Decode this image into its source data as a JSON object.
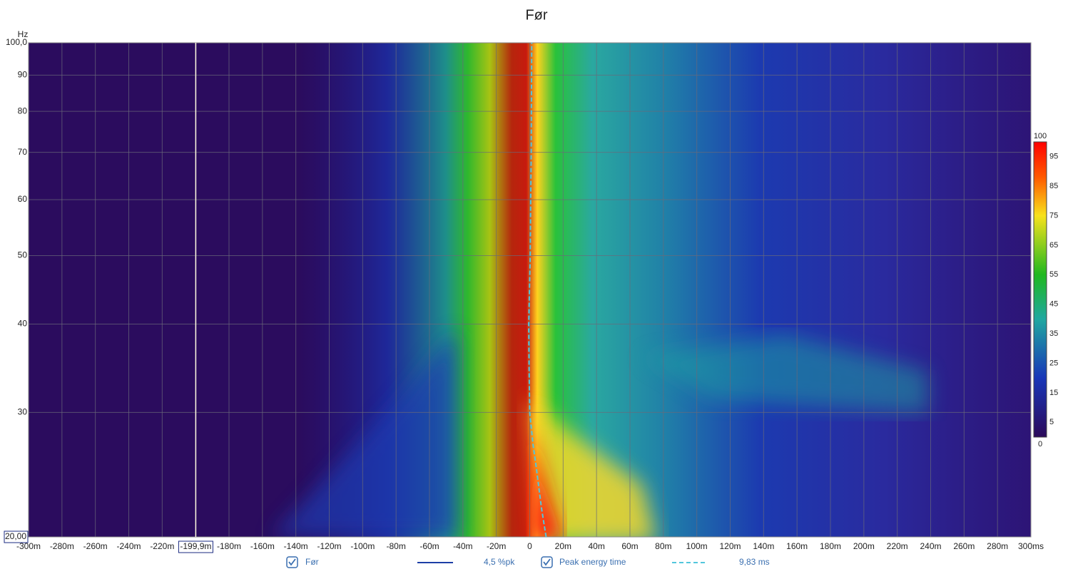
{
  "chart_data": {
    "type": "spectrogram",
    "title": "Før",
    "y_unit": "Hz",
    "xlim": [
      -300,
      300
    ],
    "ylim": [
      20,
      100
    ],
    "yscale": "log",
    "grid": true,
    "xticks": [
      {
        "value": -300,
        "label": "-300m"
      },
      {
        "value": -280,
        "label": "-280m"
      },
      {
        "value": -260,
        "label": "-260m"
      },
      {
        "value": -240,
        "label": "-240m"
      },
      {
        "value": -220,
        "label": "-220m"
      },
      {
        "value": -200,
        "label": "-200m"
      },
      {
        "value": -180,
        "label": "-180m"
      },
      {
        "value": -160,
        "label": "-160m"
      },
      {
        "value": -140,
        "label": "-140m"
      },
      {
        "value": -120,
        "label": "-120m"
      },
      {
        "value": -100,
        "label": "-100m"
      },
      {
        "value": -80,
        "label": "-80m"
      },
      {
        "value": -60,
        "label": "-60m"
      },
      {
        "value": -40,
        "label": "-40m"
      },
      {
        "value": -20,
        "label": "-20m"
      },
      0,
      {
        "value": 20,
        "label": "20m"
      },
      {
        "value": 40,
        "label": "40m"
      },
      {
        "value": 60,
        "label": "60m"
      },
      {
        "value": 80,
        "label": "80m"
      },
      {
        "value": 100,
        "label": "100m"
      },
      {
        "value": 120,
        "label": "120m"
      },
      {
        "value": 140,
        "label": "140m"
      },
      {
        "value": 160,
        "label": "160m"
      },
      {
        "value": 180,
        "label": "180m"
      },
      {
        "value": 200,
        "label": "200m"
      },
      {
        "value": 220,
        "label": "220m"
      },
      {
        "value": 240,
        "label": "240m"
      },
      {
        "value": 260,
        "label": "260m"
      },
      {
        "value": 280,
        "label": "280m"
      },
      {
        "value": 300,
        "label": "300ms"
      }
    ],
    "yticks": [
      {
        "value": 100,
        "label": "100,0"
      },
      90,
      80,
      70,
      60,
      50,
      40,
      30
    ],
    "cursor": {
      "x": -199.9,
      "x_label": "-199,9m",
      "y": 20,
      "y_label": "20,00",
      "color": "#fffbe0"
    },
    "colorbar": {
      "lim": [
        0,
        100
      ],
      "ticks": [
        100,
        95,
        85,
        75,
        65,
        55,
        45,
        35,
        25,
        15,
        5,
        0
      ]
    },
    "heatmap": {
      "name": "Før",
      "readout": "4,5 %pk",
      "color": "#1d3fa6",
      "checked": true
    },
    "series": [
      {
        "name": "Peak energy time",
        "color": "#52c6dc",
        "dashed": true,
        "checked": true,
        "readout": "9,83 ms",
        "x": [
          9.8,
          7,
          4,
          2,
          0,
          -0.4,
          -0.6,
          0.3,
          0.6,
          0.9,
          1,
          1.1,
          1.2
        ],
        "values": [
          20,
          22,
          25,
          27,
          30,
          35,
          40,
          50,
          60,
          70,
          80,
          90,
          100
        ]
      }
    ]
  }
}
